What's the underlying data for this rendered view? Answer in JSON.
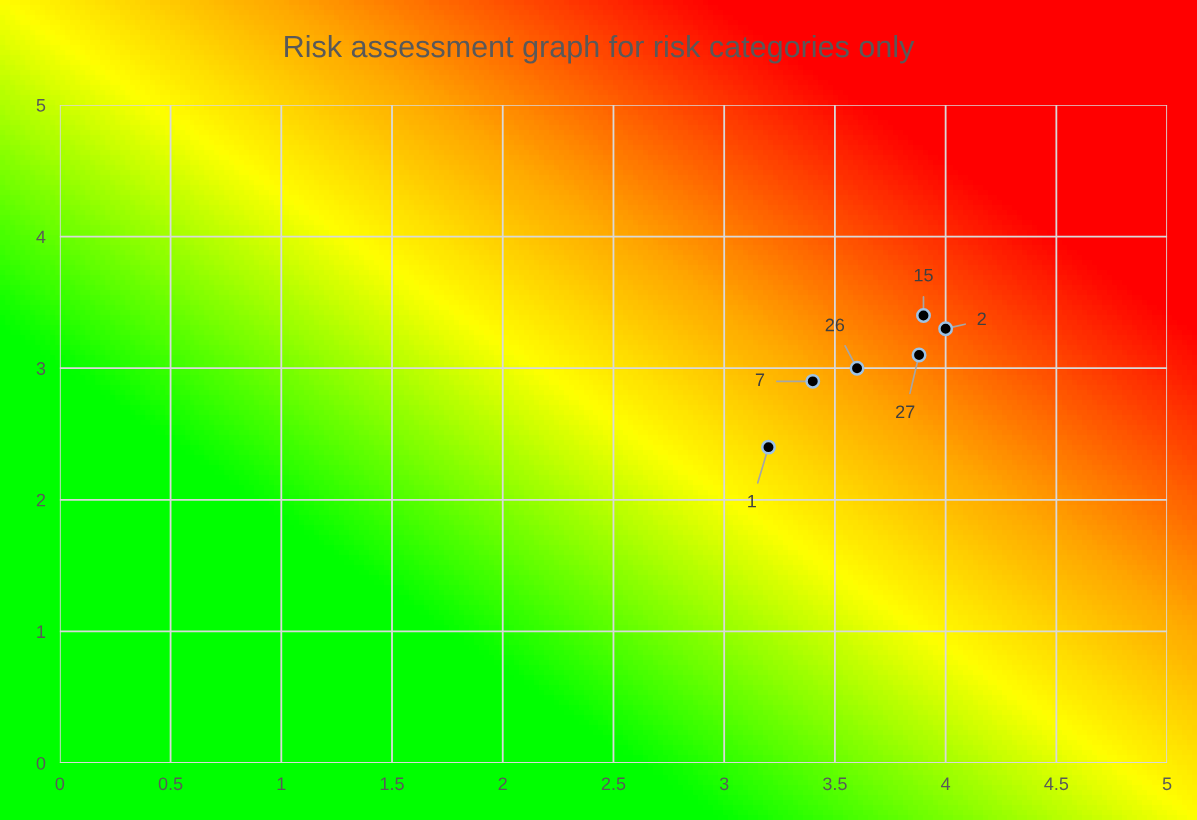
{
  "chart_data": {
    "type": "scatter",
    "title": "Risk assessment graph for risk categories only",
    "series": [
      {
        "color": "#000000",
        "x": [
          3.2,
          3.4,
          3.6,
          3.88,
          3.9,
          4.0
        ],
        "values": [
          2.4,
          2.9,
          3.0,
          3.1,
          3.4,
          3.3
        ]
      }
    ],
    "annotations": [
      {
        "text": "1",
        "x": 3.2,
        "y": 2.4
      },
      {
        "text": "7",
        "x": 3.4,
        "y": 2.9
      },
      {
        "text": "26",
        "x": 3.6,
        "y": 3.0
      },
      {
        "text": "27",
        "x": 3.88,
        "y": 3.1
      },
      {
        "text": "15",
        "x": 3.9,
        "y": 3.4
      },
      {
        "text": "2",
        "x": 4.0,
        "y": 3.3
      }
    ],
    "xlim": [
      0,
      5
    ],
    "ylim": [
      0,
      5
    ],
    "xticks": [
      0,
      0.5,
      1,
      1.5,
      2,
      2.5,
      3,
      3.5,
      4,
      4.5,
      5
    ],
    "yticks": [
      0,
      1,
      2,
      3,
      4,
      5
    ],
    "grid": true,
    "marker": "circle",
    "legend": false
  }
}
